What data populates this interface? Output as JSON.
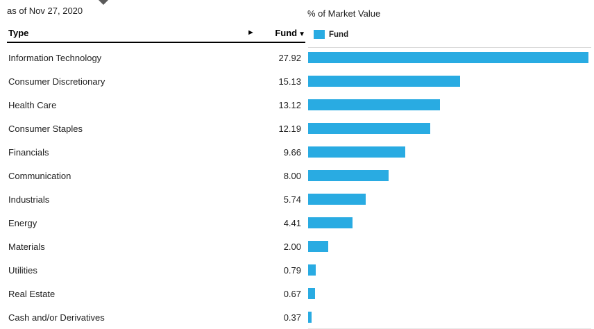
{
  "meta": {
    "as_of": "as of Nov 27, 2020"
  },
  "table": {
    "type_header": "Type",
    "expand_arrow": "►",
    "fund_header": "Fund",
    "sort_arrow": "▼",
    "rows": [
      {
        "label": "Information Technology",
        "value": "27.92"
      },
      {
        "label": "Consumer Discretionary",
        "value": "15.13"
      },
      {
        "label": "Health Care",
        "value": "13.12"
      },
      {
        "label": "Consumer Staples",
        "value": "12.19"
      },
      {
        "label": "Financials",
        "value": "9.66"
      },
      {
        "label": "Communication",
        "value": "8.00"
      },
      {
        "label": "Industrials",
        "value": "5.74"
      },
      {
        "label": "Energy",
        "value": "4.41"
      },
      {
        "label": "Materials",
        "value": "2.00"
      },
      {
        "label": "Utilities",
        "value": "0.79"
      },
      {
        "label": "Real Estate",
        "value": "0.67"
      },
      {
        "label": "Cash and/or Derivatives",
        "value": "0.37"
      }
    ]
  },
  "chart": {
    "title": "% of Market Value",
    "legend_label": "Fund",
    "bar_color": "#29abe2",
    "max_value": 27.92
  },
  "chart_data": {
    "type": "bar",
    "orientation": "horizontal",
    "title": "% of Market Value",
    "xlabel": "",
    "ylabel": "Type",
    "categories": [
      "Information Technology",
      "Consumer Discretionary",
      "Health Care",
      "Consumer Staples",
      "Financials",
      "Communication",
      "Industrials",
      "Energy",
      "Materials",
      "Utilities",
      "Real Estate",
      "Cash and/or Derivatives"
    ],
    "series": [
      {
        "name": "Fund",
        "values": [
          27.92,
          15.13,
          13.12,
          12.19,
          9.66,
          8.0,
          5.74,
          4.41,
          2.0,
          0.79,
          0.67,
          0.37
        ]
      }
    ],
    "xlim": [
      0,
      27.92
    ],
    "grid": false,
    "legend_position": "top-left",
    "bar_color": "#29abe2",
    "as_of": "as of Nov 27, 2020"
  }
}
